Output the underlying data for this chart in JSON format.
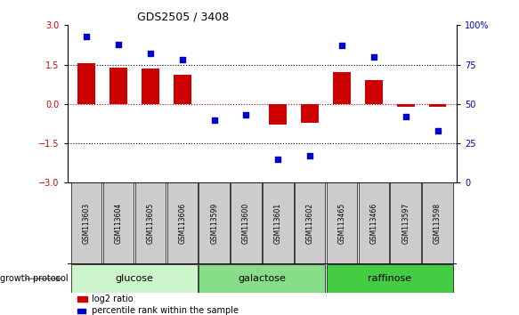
{
  "title": "GDS2505 / 3408",
  "samples": [
    "GSM113603",
    "GSM113604",
    "GSM113605",
    "GSM113606",
    "GSM113599",
    "GSM113600",
    "GSM113601",
    "GSM113602",
    "GSM113465",
    "GSM113466",
    "GSM113597",
    "GSM113598"
  ],
  "log2_ratio": [
    1.55,
    1.4,
    1.35,
    1.1,
    0.0,
    0.0,
    -0.78,
    -0.72,
    1.2,
    0.9,
    -0.12,
    -0.12
  ],
  "percentile_rank": [
    93,
    88,
    82,
    78,
    40,
    43,
    15,
    17,
    87,
    80,
    42,
    33
  ],
  "groups": [
    {
      "label": "glucose",
      "start": 0,
      "end": 3,
      "color": "#ccf5cc"
    },
    {
      "label": "galactose",
      "start": 4,
      "end": 7,
      "color": "#88dd88"
    },
    {
      "label": "raffinose",
      "start": 8,
      "end": 11,
      "color": "#44cc44"
    }
  ],
  "bar_color": "#cc0000",
  "dot_color": "#0000cc",
  "left_ylim": [
    -3,
    3
  ],
  "right_ylim": [
    0,
    100
  ],
  "left_yticks": [
    -3,
    -1.5,
    0,
    1.5,
    3
  ],
  "right_yticks": [
    0,
    25,
    50,
    75,
    100
  ],
  "right_yticklabels": [
    "0",
    "25",
    "50",
    "75",
    "100%"
  ],
  "hline_dotted": [
    1.5,
    -1.5
  ],
  "legend_log2": "log2 ratio",
  "legend_pct": "percentile rank within the sample",
  "growth_protocol_label": "growth protocol"
}
